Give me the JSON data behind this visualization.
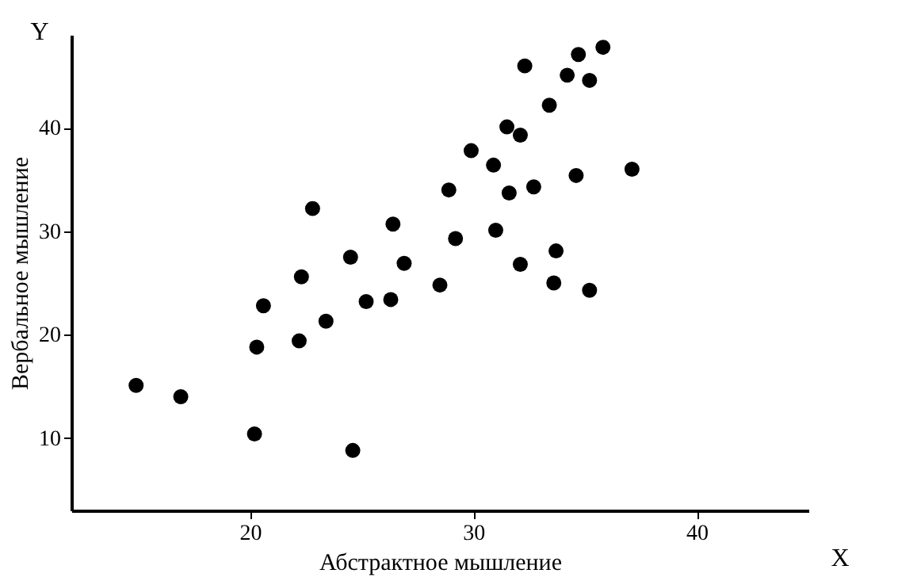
{
  "chart_data": {
    "type": "scatter",
    "xlabel": "Абстрактное мышление",
    "ylabel": "Вербальное мышление",
    "annotations": [
      "X",
      "Y"
    ],
    "x": [
      14.9,
      16.9,
      20.2,
      20.3,
      20.6,
      22.2,
      22.3,
      23.4,
      22.8,
      24.5,
      24.6,
      25.2,
      26.3,
      26.4,
      26.9,
      28.5,
      28.9,
      29.2,
      29.9,
      32.3,
      34.7,
      35.8,
      34.2,
      35.2,
      33.4,
      31.5,
      32.1,
      30.9,
      37.1,
      34.6,
      32.7,
      31.6,
      31.0,
      33.7,
      32.1,
      33.6,
      35.2
    ],
    "values": [
      15.1,
      14.0,
      10.4,
      18.8,
      22.8,
      19.4,
      25.6,
      21.3,
      32.2,
      27.5,
      8.8,
      23.2,
      23.4,
      30.7,
      26.9,
      24.8,
      34.0,
      29.3,
      37.8,
      46.0,
      47.1,
      47.8,
      45.1,
      44.6,
      42.2,
      40.1,
      39.3,
      36.4,
      36.0,
      35.4,
      34.3,
      33.7,
      30.1,
      28.1,
      26.8,
      25.0,
      24.3
    ],
    "color": "#000000",
    "marker": "circle",
    "grid": false,
    "xlim": [
      12,
      45
    ],
    "ylim": [
      3,
      49
    ],
    "xticks": [
      20,
      30,
      40
    ],
    "yticks": [
      10,
      20,
      30,
      40
    ]
  }
}
